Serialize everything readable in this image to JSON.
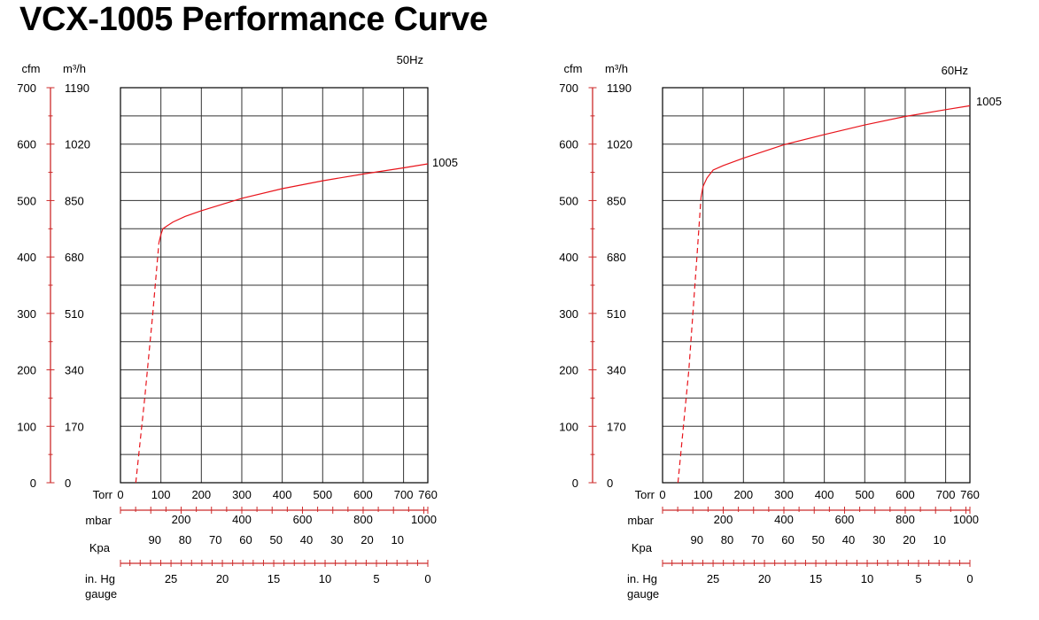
{
  "title": "VCX-1005 Performance Curve",
  "chart_data": [
    {
      "type": "line",
      "frequency": "50Hz",
      "cfm_label": "cfm",
      "m3h_label": "m³/h",
      "cfm_ticks": [
        "0",
        "100",
        "200",
        "300",
        "400",
        "500",
        "600",
        "700"
      ],
      "m3h_ticks": [
        "0",
        "170",
        "340",
        "510",
        "680",
        "850",
        "1020",
        "1190"
      ],
      "ylim": [
        0,
        700
      ],
      "torr_label": "Torr",
      "torr_ticks": [
        "0",
        "100",
        "200",
        "300",
        "400",
        "500",
        "600",
        "700",
        "760"
      ],
      "xlim": [
        0,
        760
      ],
      "mbar_label": "mbar",
      "mbar_ticks": [
        "200",
        "400",
        "600",
        "800",
        "1000"
      ],
      "kpa_label": "Kpa",
      "kpa_ticks": [
        "90",
        "80",
        "70",
        "60",
        "50",
        "40",
        "30",
        "20",
        "10"
      ],
      "inhg_label": "in. Hg",
      "inhg_label2": "gauge",
      "inhg_ticks": [
        "25",
        "20",
        "15",
        "10",
        "5",
        "0"
      ],
      "series": [
        {
          "name": "1005",
          "color": "#e8141b",
          "dashed": [
            [
              38,
              0
            ],
            [
              60,
              150
            ],
            [
              80,
              300
            ],
            [
              95,
              425
            ]
          ],
          "solid": [
            [
              95,
              425
            ],
            [
              100,
              440
            ],
            [
              105,
              450
            ],
            [
              115,
              455
            ],
            [
              130,
              462
            ],
            [
              160,
              472
            ],
            [
              200,
              482
            ],
            [
              250,
              493
            ],
            [
              300,
              504
            ],
            [
              400,
              521
            ],
            [
              500,
              535
            ],
            [
              600,
              547
            ],
            [
              700,
              558
            ],
            [
              760,
              565
            ]
          ]
        }
      ]
    },
    {
      "type": "line",
      "frequency": "60Hz",
      "cfm_label": "cfm",
      "m3h_label": "m³/h",
      "cfm_ticks": [
        "0",
        "100",
        "200",
        "300",
        "400",
        "500",
        "600",
        "700"
      ],
      "m3h_ticks": [
        "0",
        "170",
        "340",
        "510",
        "680",
        "850",
        "1020",
        "1190"
      ],
      "ylim": [
        0,
        700
      ],
      "torr_label": "Torr",
      "torr_ticks": [
        "0",
        "100",
        "200",
        "300",
        "400",
        "500",
        "600",
        "700",
        "760"
      ],
      "xlim": [
        0,
        760
      ],
      "mbar_label": "mbar",
      "mbar_ticks": [
        "200",
        "400",
        "600",
        "800",
        "1000"
      ],
      "kpa_label": "Kpa",
      "kpa_ticks": [
        "90",
        "80",
        "70",
        "60",
        "50",
        "40",
        "30",
        "20",
        "10"
      ],
      "inhg_label": "in. Hg",
      "inhg_label2": "gauge",
      "inhg_ticks": [
        "25",
        "20",
        "15",
        "10",
        "5",
        "0"
      ],
      "series": [
        {
          "name": "1005",
          "color": "#e8141b",
          "dashed": [
            [
              38,
              0
            ],
            [
              65,
              200
            ],
            [
              85,
              400
            ],
            [
              95,
              505
            ]
          ],
          "solid": [
            [
              95,
              505
            ],
            [
              100,
              525
            ],
            [
              110,
              540
            ],
            [
              125,
              554
            ],
            [
              150,
              562
            ],
            [
              200,
              575
            ],
            [
              300,
              599
            ],
            [
              400,
              617
            ],
            [
              500,
              634
            ],
            [
              600,
              649
            ],
            [
              700,
              661
            ],
            [
              760,
              668
            ]
          ]
        }
      ]
    }
  ]
}
